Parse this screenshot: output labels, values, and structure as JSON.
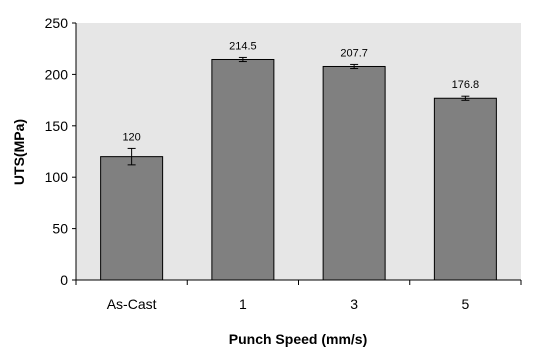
{
  "chart_data": {
    "type": "bar",
    "title": "",
    "xlabel": "Punch Speed (mm/s)",
    "ylabel": "UTS(MPa)",
    "categories": [
      "As-Cast",
      "1",
      "3",
      "5"
    ],
    "values": [
      120,
      214.5,
      207.7,
      176.8
    ],
    "value_labels": [
      "120",
      "214.5",
      "207.7",
      "176.8"
    ],
    "error": [
      8,
      2,
      2,
      2
    ],
    "ylim": [
      0,
      250
    ],
    "yticks": [
      0,
      50,
      100,
      150,
      200,
      250
    ],
    "grid": false,
    "legend": "none",
    "plot_background": "#e6e6e6",
    "bar_color": "#808080",
    "bar_edge_color": "#000000"
  }
}
